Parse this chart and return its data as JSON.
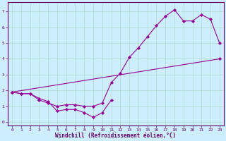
{
  "background_color": "#cceeff",
  "grid_color": "#aaddcc",
  "line_color": "#990099",
  "spine_color": "#660066",
  "xlabel": "Windchill (Refroidissement éolien,°C)",
  "curve_main": [
    [
      0,
      1.9
    ],
    [
      1,
      1.8
    ],
    [
      2,
      1.8
    ],
    [
      3,
      1.4
    ],
    [
      4,
      1.2
    ],
    [
      5,
      1.0
    ],
    [
      6,
      1.1
    ],
    [
      7,
      1.1
    ],
    [
      8,
      1.0
    ],
    [
      9,
      1.0
    ],
    [
      10,
      1.2
    ],
    [
      11,
      2.5
    ],
    [
      12,
      3.1
    ],
    [
      13,
      4.1
    ],
    [
      14,
      4.7
    ],
    [
      15,
      5.4
    ],
    [
      16,
      6.1
    ],
    [
      17,
      6.7
    ],
    [
      18,
      7.1
    ],
    [
      19,
      6.4
    ],
    [
      20,
      6.4
    ],
    [
      21,
      6.8
    ],
    [
      22,
      6.5
    ],
    [
      23,
      5.0
    ]
  ],
  "curve_bottom": [
    [
      0,
      1.9
    ],
    [
      1,
      1.8
    ],
    [
      2,
      1.8
    ],
    [
      3,
      1.5
    ],
    [
      4,
      1.3
    ],
    [
      5,
      0.7
    ],
    [
      6,
      0.8
    ],
    [
      7,
      0.8
    ],
    [
      8,
      0.6
    ],
    [
      9,
      0.3
    ],
    [
      10,
      0.6
    ],
    [
      11,
      1.4
    ]
  ],
  "curve_diagonal": [
    [
      0,
      1.9
    ],
    [
      23,
      4.0
    ]
  ],
  "ylim": [
    -0.2,
    7.6
  ],
  "xlim": [
    -0.5,
    23.5
  ],
  "yticks": [
    0,
    1,
    2,
    3,
    4,
    5,
    6,
    7
  ],
  "xticks": [
    0,
    1,
    2,
    3,
    4,
    5,
    6,
    7,
    8,
    9,
    10,
    11,
    12,
    13,
    14,
    15,
    16,
    17,
    18,
    19,
    20,
    21,
    22,
    23
  ],
  "tick_fontsize": 4.5,
  "xlabel_fontsize": 5.5,
  "marker": "D",
  "markersize": 2.0,
  "linewidth": 0.8
}
